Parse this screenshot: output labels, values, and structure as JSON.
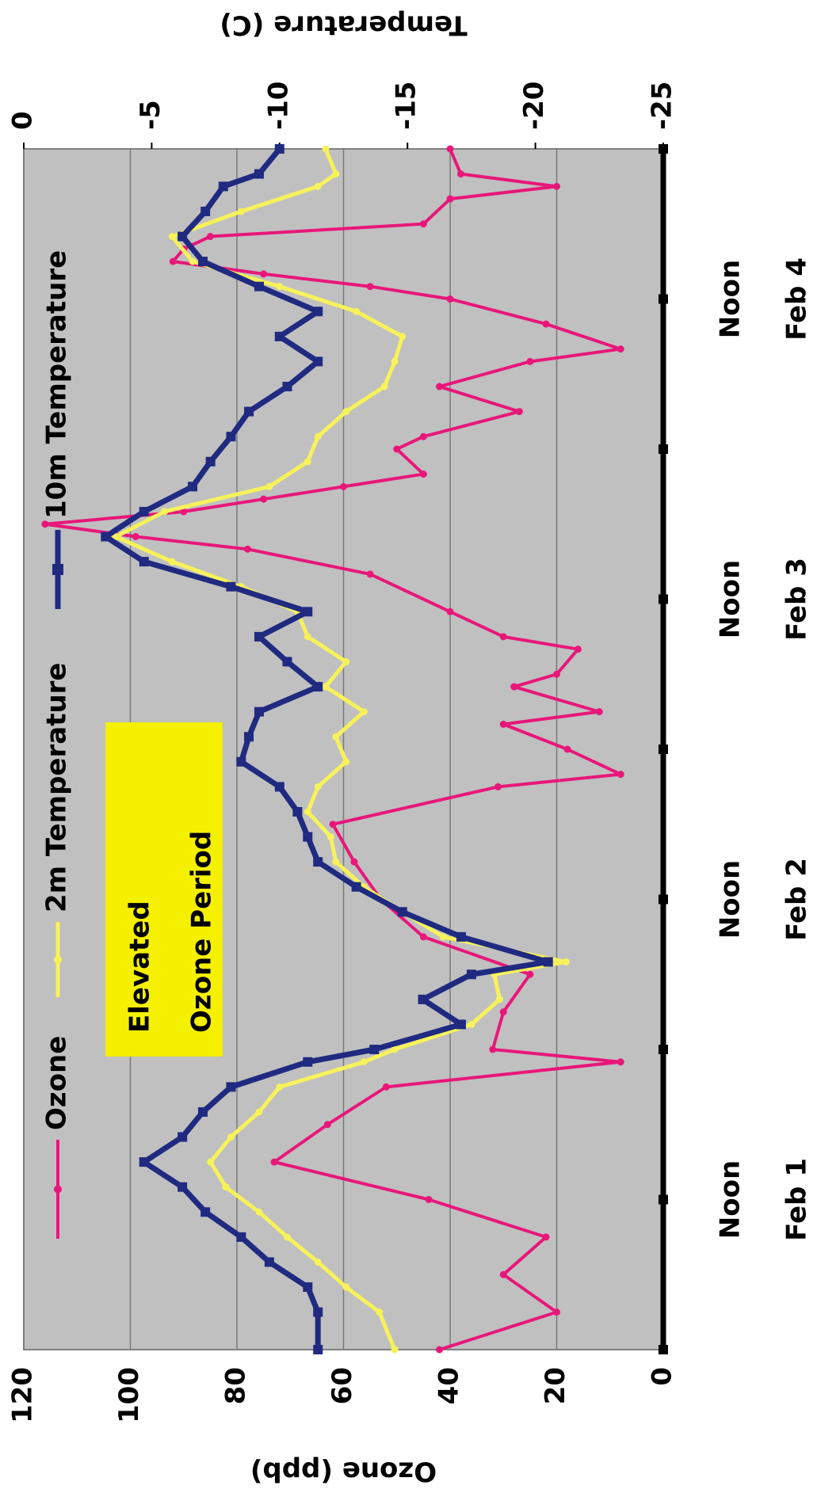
{
  "chart_data": {
    "type": "line",
    "y_label": "Ozone (ppb)",
    "y2_label": "Temperature (C)",
    "annotation": [
      "Elevated",
      "Ozone Period"
    ],
    "xlim": [
      0,
      96
    ],
    "xticks": [
      {
        "value": 12,
        "label": "Noon"
      },
      {
        "value": 36,
        "label": "Noon"
      },
      {
        "value": 60,
        "label": "Noon"
      },
      {
        "value": 84,
        "label": "Noon"
      }
    ],
    "xminorticks": [
      0,
      24,
      48,
      72,
      96
    ],
    "date_labels": [
      {
        "value": 12,
        "label": "Feb 1"
      },
      {
        "value": 36,
        "label": "Feb 2"
      },
      {
        "value": 60,
        "label": "Feb 3"
      },
      {
        "value": 84,
        "label": "Feb 4"
      }
    ],
    "ylim": [
      0,
      120
    ],
    "yticks": [
      0,
      20,
      40,
      60,
      80,
      100,
      120
    ],
    "y2lim": [
      -25,
      0
    ],
    "y2ticks": [
      -25,
      -20,
      -15,
      -10,
      -5,
      0
    ],
    "grid": true,
    "rotation": -90,
    "series": [
      {
        "name": "Ozone",
        "color": "#e8177a",
        "x": [
          0,
          3,
          6,
          9,
          12,
          15,
          18,
          21,
          23,
          24,
          27,
          30,
          33,
          36,
          39,
          42,
          45,
          46,
          48,
          50,
          51,
          53,
          54,
          56,
          57,
          59,
          62,
          64,
          65,
          66,
          67,
          68,
          69,
          70,
          72,
          73,
          75,
          77,
          79,
          80,
          82,
          84,
          85,
          86,
          87,
          88,
          89,
          90,
          92,
          93,
          94,
          96
        ],
        "values": [
          42,
          20,
          30,
          22,
          44,
          73,
          63,
          52,
          8,
          32,
          30,
          25,
          45,
          53,
          58,
          62,
          31,
          8,
          18,
          30,
          12,
          28,
          20,
          16,
          30,
          40,
          55,
          78,
          99,
          116,
          90,
          75,
          60,
          45,
          50,
          45,
          27,
          42,
          25,
          8,
          22,
          40,
          55,
          75,
          92,
          90,
          85,
          45,
          40,
          20,
          38,
          40
        ]
      },
      {
        "name": "2m Temperature",
        "color": "#f7f25a",
        "axis": "y2",
        "x": [
          0,
          3,
          5,
          7,
          9,
          11,
          13,
          15,
          17,
          19,
          21,
          23,
          24,
          26,
          28,
          30,
          31,
          33,
          35,
          37,
          39,
          41,
          43,
          45,
          47,
          49,
          51,
          53,
          55,
          57,
          59,
          61,
          63,
          65,
          67,
          69,
          71,
          73,
          75,
          77,
          79,
          81,
          83,
          85,
          87,
          89,
          91,
          93,
          94,
          96
        ],
        "values": [
          -14.5,
          -13.9,
          -12.6,
          -11.5,
          -10.3,
          -9.2,
          -7.9,
          -7.3,
          -8.1,
          -9.2,
          -10,
          -13.3,
          -14.5,
          -17.5,
          -18.6,
          -18.4,
          -21.2,
          -16.4,
          -14.8,
          -13.3,
          -12.2,
          -12,
          -11.1,
          -11.5,
          -12.6,
          -12.2,
          -13.3,
          -11.8,
          -12.6,
          -11.1,
          -10.7,
          -8.5,
          -5.8,
          -3.6,
          -5.5,
          -9.6,
          -11.1,
          -11.5,
          -12.6,
          -14.1,
          -14.5,
          -14.8,
          -13,
          -10,
          -6.6,
          -5.8,
          -8.5,
          -11.5,
          -12.2,
          -11.8
        ]
      },
      {
        "name": "10m Temperature",
        "color": "#1f2a80",
        "axis": "y2",
        "x": [
          0,
          3,
          5,
          7,
          9,
          11,
          13,
          15,
          17,
          19,
          21,
          23,
          24,
          26,
          28,
          30,
          31,
          33,
          35,
          37,
          39,
          41,
          43,
          45,
          47,
          49,
          51,
          53,
          55,
          57,
          59,
          61,
          63,
          65,
          67,
          69,
          71,
          73,
          75,
          77,
          79,
          81,
          83,
          85,
          87,
          89,
          91,
          93,
          94,
          96
        ],
        "values": [
          -11.5,
          -11.5,
          -11.1,
          -9.6,
          -8.5,
          -7.1,
          -6.2,
          -4.7,
          -6.2,
          -7,
          -8.1,
          -11.1,
          -13.7,
          -17.1,
          -15.6,
          -17.5,
          -20.5,
          -17.1,
          -14.8,
          -13,
          -11.5,
          -11.1,
          -10.7,
          -10,
          -8.5,
          -8.8,
          -9.2,
          -11.5,
          -10.3,
          -9.2,
          -11.1,
          -8.1,
          -4.7,
          -3.2,
          -4.7,
          -6.6,
          -7.3,
          -8.1,
          -8.8,
          -10.3,
          -11.5,
          -10,
          -11.5,
          -9.2,
          -7,
          -6.2,
          -7.1,
          -7.8,
          -9.2,
          -10
        ]
      }
    ]
  }
}
